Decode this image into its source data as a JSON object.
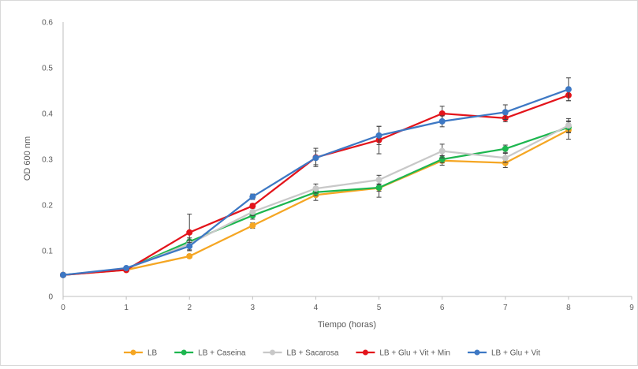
{
  "chart_data": {
    "type": "line",
    "title": "",
    "xlabel": "Tiempo (horas)",
    "ylabel": "OD 600 nm",
    "xlim": [
      0,
      9
    ],
    "ylim": [
      0,
      0.6
    ],
    "x_ticks": [
      0,
      1,
      2,
      3,
      4,
      5,
      6,
      7,
      8,
      9
    ],
    "y_ticks": [
      0,
      0.1,
      0.2,
      0.3,
      0.4,
      0.5,
      0.6
    ],
    "x_tick_labels": [
      "0",
      "1",
      "2",
      "3",
      "4",
      "5",
      "6",
      "7",
      "8",
      "9"
    ],
    "y_tick_labels": [
      "0",
      "0.1",
      "0.2",
      "0.3",
      "0.4",
      "0.5",
      "0.6"
    ],
    "grid": false,
    "legend_position": "bottom",
    "x": [
      0,
      1,
      2,
      3,
      4,
      5,
      6,
      7,
      8
    ],
    "series": [
      {
        "name": "LB",
        "color": "#f5a623",
        "values": [
          0.047,
          0.058,
          0.088,
          0.155,
          0.222,
          0.237,
          0.297,
          0.292,
          0.364
        ],
        "errors": [
          0.002,
          0.003,
          0.004,
          0.006,
          0.012,
          0.02,
          0.01,
          0.01,
          0.02
        ]
      },
      {
        "name": "LB + Caseina",
        "color": "#1db64f",
        "values": [
          0.047,
          0.06,
          0.12,
          0.177,
          0.228,
          0.238,
          0.3,
          0.323,
          0.37
        ],
        "errors": [
          0.002,
          0.003,
          0.008,
          0.008,
          0.008,
          0.008,
          0.008,
          0.008,
          0.012
        ]
      },
      {
        "name": "LB + Sacarosa",
        "color": "#c8c8c8",
        "values": [
          0.047,
          0.06,
          0.115,
          0.185,
          0.236,
          0.255,
          0.318,
          0.303,
          0.374
        ],
        "errors": [
          0.002,
          0.003,
          0.008,
          0.008,
          0.01,
          0.01,
          0.015,
          0.01,
          0.015
        ]
      },
      {
        "name": "LB + Glu + Vit + Min",
        "color": "#e3141b",
        "values": [
          0.047,
          0.058,
          0.14,
          0.198,
          0.304,
          0.342,
          0.4,
          0.39,
          0.44
        ],
        "errors": [
          0.002,
          0.003,
          0.04,
          0.005,
          0.02,
          0.03,
          0.016,
          0.008,
          0.012
        ]
      },
      {
        "name": "LB + Glu + Vit",
        "color": "#3d78c4",
        "values": [
          0.047,
          0.062,
          0.11,
          0.218,
          0.303,
          0.352,
          0.383,
          0.403,
          0.453
        ],
        "errors": [
          0.002,
          0.003,
          0.008,
          0.006,
          0.015,
          0.02,
          0.012,
          0.016,
          0.025
        ]
      }
    ]
  }
}
